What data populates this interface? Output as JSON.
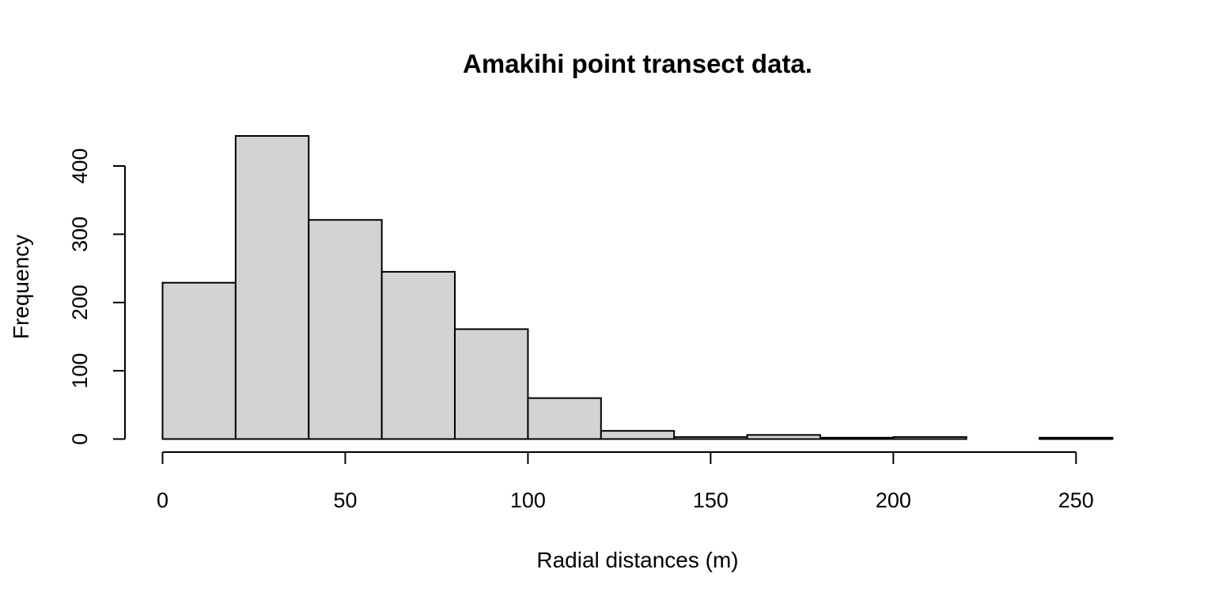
{
  "chart_data": {
    "type": "bar",
    "title": "Amakihi point transect data.",
    "xlabel": "Radial distances (m)",
    "ylabel": "Frequency",
    "bins": [
      {
        "from": 0,
        "to": 20,
        "count": 229
      },
      {
        "from": 20,
        "to": 40,
        "count": 444
      },
      {
        "from": 40,
        "to": 60,
        "count": 321
      },
      {
        "from": 60,
        "to": 80,
        "count": 245
      },
      {
        "from": 80,
        "to": 100,
        "count": 161
      },
      {
        "from": 100,
        "to": 120,
        "count": 60
      },
      {
        "from": 120,
        "to": 140,
        "count": 12
      },
      {
        "from": 140,
        "to": 160,
        "count": 3
      },
      {
        "from": 160,
        "to": 180,
        "count": 6
      },
      {
        "from": 180,
        "to": 200,
        "count": 2
      },
      {
        "from": 200,
        "to": 220,
        "count": 3
      },
      {
        "from": 220,
        "to": 240,
        "count": 0
      },
      {
        "from": 240,
        "to": 260,
        "count": 2
      }
    ],
    "xticks": [
      0,
      50,
      100,
      150,
      200,
      250
    ],
    "yticks": [
      0,
      100,
      200,
      300,
      400
    ],
    "xlim": [
      0,
      260
    ],
    "ylim": [
      0,
      444
    ],
    "bar_color": "#d3d3d3",
    "grid": false,
    "legend": "none"
  }
}
